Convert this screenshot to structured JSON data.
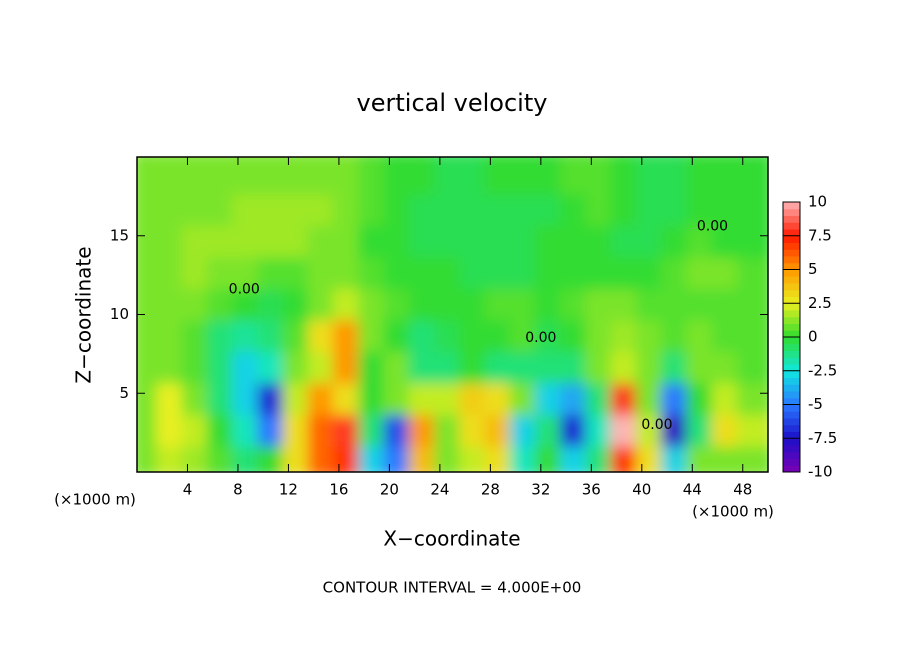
{
  "chart_data": {
    "type": "heatmap",
    "title": "vertical velocity",
    "x_label": "X−coordinate",
    "y_label": "Z−coordinate",
    "x_unit": "(×1000 m)",
    "footnote": "CONTOUR INTERVAL = 4.000E+00",
    "x": [
      1,
      3,
      5,
      7,
      9,
      11,
      13,
      15,
      17,
      19,
      21,
      23,
      25,
      27,
      29,
      31,
      33,
      35,
      37,
      39,
      41,
      43,
      45,
      47,
      49
    ],
    "y": [
      1,
      3,
      5,
      7,
      9,
      11,
      13,
      15,
      17,
      19
    ],
    "z": [
      [
        1,
        2,
        1.5,
        0.5,
        -1,
        0,
        3,
        6,
        7,
        -3,
        -5,
        4,
        1,
        2,
        3,
        -2,
        0,
        -3,
        -1,
        7,
        3,
        -3,
        1,
        1,
        1
      ],
      [
        1,
        2.5,
        2,
        0,
        -2,
        -5,
        3,
        6,
        8,
        -1,
        -6,
        5,
        1,
        3,
        4,
        -3,
        -1,
        -7,
        -2,
        10,
        2,
        -8,
        -1,
        3,
        2
      ],
      [
        1,
        2.5,
        1,
        -1,
        -3,
        -7,
        2,
        5,
        3,
        0,
        1,
        2,
        2,
        3.5,
        3,
        1,
        -3,
        -4,
        -1,
        8,
        1,
        -5,
        0,
        2,
        1
      ],
      [
        1,
        1,
        0.5,
        -1,
        -3,
        -2,
        1,
        2,
        5,
        0,
        1,
        -1,
        -1,
        0,
        -1,
        -1,
        -1,
        -1,
        1,
        2,
        1,
        -1,
        1,
        1,
        0.5
      ],
      [
        1,
        1,
        0.5,
        -1,
        -1.5,
        -1,
        0.5,
        3,
        5,
        1,
        0,
        -1,
        -0.5,
        0,
        0,
        0.5,
        -0.5,
        0,
        1,
        1.5,
        1,
        0.5,
        1,
        0.5,
        0.5
      ],
      [
        1,
        1,
        1,
        0.5,
        0,
        -0.5,
        0,
        1,
        2,
        1,
        0.5,
        0,
        0,
        0,
        0.5,
        0.5,
        0,
        0.5,
        1,
        1,
        0.5,
        0.5,
        0.5,
        0.5,
        0.5
      ],
      [
        1,
        1,
        1.5,
        1,
        1,
        0.5,
        0.5,
        1,
        1,
        0.5,
        0,
        0,
        0,
        -0.5,
        -0.5,
        -0.5,
        0,
        0,
        0,
        0,
        0,
        0.5,
        1,
        1,
        0.5
      ],
      [
        1,
        1,
        1.5,
        1.5,
        1.5,
        1.5,
        1.5,
        1,
        1,
        0,
        0,
        -0.5,
        -0.5,
        -0.5,
        -0.5,
        -0.5,
        0,
        0,
        0,
        -0.5,
        -0.5,
        0,
        0.5,
        0,
        0
      ],
      [
        1,
        1,
        1,
        1,
        1.5,
        1.5,
        1.5,
        1.5,
        1,
        0.5,
        0,
        -0.5,
        -0.5,
        -0.5,
        -0.5,
        -0.5,
        -0.5,
        0,
        0.5,
        0,
        -0.5,
        -0.5,
        0,
        0,
        0
      ],
      [
        1,
        1,
        1,
        1,
        1,
        1,
        1,
        1,
        1,
        0.5,
        0,
        0,
        -0.5,
        -0.5,
        0,
        0,
        0,
        0.5,
        0.5,
        0,
        -0.5,
        -0.5,
        0,
        0,
        0
      ]
    ],
    "xlim": [
      0,
      50
    ],
    "ylim": [
      0,
      20
    ],
    "xticks": [
      4,
      8,
      12,
      16,
      20,
      24,
      28,
      32,
      36,
      40,
      44,
      48
    ],
    "yticks": [
      5,
      10,
      15
    ],
    "colorbar": {
      "lim": [
        -10,
        10
      ],
      "ticks": [
        10,
        7.5,
        5,
        2.5,
        0,
        -2.5,
        -5,
        -7.5,
        -10
      ],
      "colors": [
        "#7a00b4",
        "#1c10c8",
        "#2a78ff",
        "#10e8e0",
        "#30dc30",
        "#e8f020",
        "#ff9800",
        "#ff1800",
        "#ffb4b4"
      ]
    },
    "annotations": [
      {
        "text": "0.00",
        "x": 8.5,
        "y": 11.6
      },
      {
        "text": "0.00",
        "x": 32,
        "y": 8.5
      },
      {
        "text": "0.00",
        "x": 45.6,
        "y": 15.6
      },
      {
        "text": "0.00",
        "x": 41.2,
        "y": 3
      }
    ]
  }
}
